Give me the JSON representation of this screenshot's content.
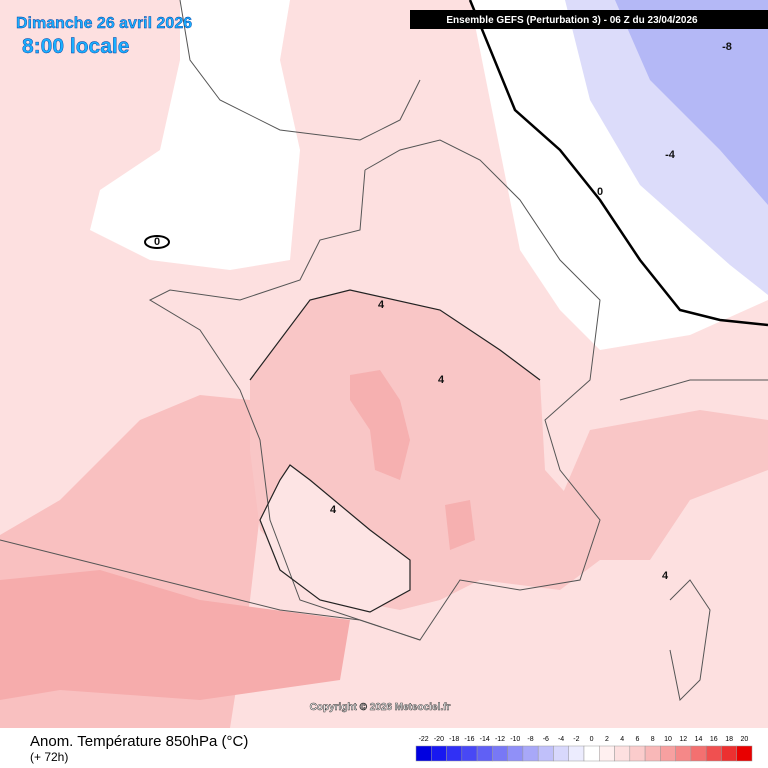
{
  "header": {
    "date": "Dimanche 26 avril 2026",
    "time": "8:00 locale",
    "model": "Ensemble GEFS  (Perturbation 3)  -  06 Z du 23/04/2026"
  },
  "map": {
    "contour_labels": [
      "0",
      "4",
      "4",
      "4",
      "4",
      "0",
      "-4",
      "-8"
    ],
    "copyright": "Copyright © 2026 Meteociel.fr"
  },
  "legend": {
    "title": "Anom. Température 850hPa (°C)",
    "subtitle": "(+ 72h)",
    "labels": [
      "-22",
      "-20",
      "-18",
      "-16",
      "-14",
      "-12",
      "-10",
      "-8",
      "-6",
      "-4",
      "-2",
      "0",
      "2",
      "4",
      "6",
      "8",
      "10",
      "12",
      "14",
      "16",
      "18",
      "20"
    ],
    "colors": [
      "#0000e0",
      "#1818f0",
      "#3030f5",
      "#4848f5",
      "#6060f5",
      "#7878f5",
      "#9090f8",
      "#a8a8f8",
      "#c0c0fa",
      "#d8d8fc",
      "#ececfe",
      "#ffffff",
      "#fff0f0",
      "#fde0e0",
      "#fbcccc",
      "#f9b8b8",
      "#f7a0a0",
      "#f58888",
      "#f37070",
      "#f05050",
      "#ec3030",
      "#e80000"
    ]
  }
}
